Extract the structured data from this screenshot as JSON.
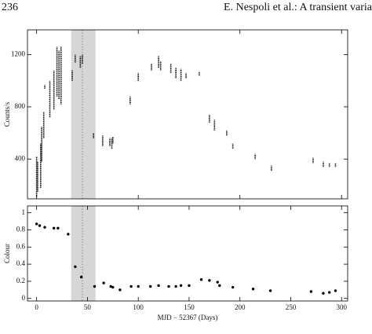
{
  "header": {
    "page": "236",
    "running_title": "E. Nespoli et al.: A transient varia"
  },
  "chart_data": [
    {
      "type": "range",
      "ylabel": "Counts/s",
      "x": [
        0,
        1,
        4,
        5,
        7,
        8,
        13,
        17,
        20,
        22,
        24,
        35,
        38,
        43,
        45,
        56,
        65,
        72,
        74,
        75,
        92,
        100,
        113,
        120,
        122,
        132,
        137,
        142,
        147,
        160,
        170,
        175,
        187,
        193,
        215,
        231,
        272,
        282,
        288,
        294
      ],
      "low": [
        110,
        150,
        180,
        380,
        560,
        940,
        720,
        780,
        880,
        860,
        820,
        1000,
        1140,
        1100,
        1130,
        560,
        500,
        500,
        480,
        520,
        820,
        1000,
        1080,
        1100,
        1080,
        1060,
        1020,
        1000,
        1020,
        1040,
        680,
        620,
        580,
        480,
        400,
        310,
        370,
        340,
        340,
        340
      ],
      "high": [
        420,
        380,
        520,
        650,
        760,
        970,
        1000,
        1080,
        1260,
        1230,
        1260,
        1080,
        1200,
        1190,
        1200,
        600,
        580,
        560,
        560,
        570,
        880,
        1060,
        1130,
        1190,
        1150,
        1130,
        1100,
        1090,
        1060,
        1070,
        740,
        700,
        620,
        520,
        440,
        350,
        410,
        380,
        370,
        370
      ],
      "xlim": [
        -9,
        306
      ],
      "ylim": [
        95,
        1390
      ],
      "xticks": [
        0,
        100,
        200,
        300
      ],
      "yticks": [
        400,
        800,
        1200
      ],
      "shaded_span": [
        34,
        58
      ],
      "marker_line": 45,
      "color": "#000000",
      "shade_color": "#d6d6d6"
    },
    {
      "type": "scatter",
      "ylabel": "Colour",
      "xlabel": "MJD − 52367 (Days)",
      "x": [
        0,
        3,
        8,
        17,
        21,
        31,
        38,
        44,
        57,
        66,
        73,
        75,
        82,
        93,
        100,
        112,
        120,
        130,
        137,
        142,
        150,
        162,
        170,
        178,
        180,
        193,
        213,
        230,
        270,
        282,
        288,
        294
      ],
      "values": [
        0.87,
        0.85,
        0.83,
        0.82,
        0.82,
        0.75,
        0.37,
        0.25,
        0.14,
        0.18,
        0.14,
        0.13,
        0.1,
        0.14,
        0.14,
        0.14,
        0.15,
        0.14,
        0.14,
        0.15,
        0.15,
        0.22,
        0.21,
        0.19,
        0.15,
        0.13,
        0.11,
        0.09,
        0.08,
        0.06,
        0.07,
        0.09
      ],
      "xlim": [
        -9,
        306
      ],
      "ylim": [
        -0.03,
        1.08
      ],
      "xticks": [
        0,
        50,
        100,
        150,
        200,
        250,
        300
      ],
      "yticks": [
        0,
        0.2,
        0.4,
        0.6,
        0.8,
        1
      ],
      "shaded_span": [
        34,
        58
      ],
      "marker_line": 45,
      "color": "#000000",
      "shade_color": "#d6d6d6"
    }
  ]
}
